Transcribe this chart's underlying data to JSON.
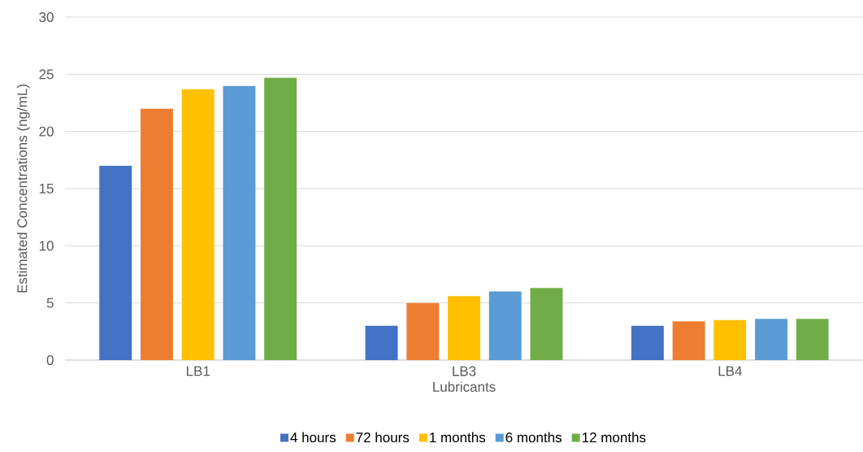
{
  "chart_data": {
    "type": "bar",
    "xlabel": "Lubricants",
    "ylabel": "Estimated Concentrations (ng/mL)",
    "categories": [
      "LB1",
      "LB3",
      "LB4"
    ],
    "series": [
      {
        "name": "4 hours",
        "color": "#4472c4",
        "values": [
          17.0,
          3.0,
          3.0
        ]
      },
      {
        "name": "72 hours",
        "color": "#ed7d31",
        "values": [
          22.0,
          5.0,
          3.4
        ]
      },
      {
        "name": "1 months",
        "color": "#ffc000",
        "values": [
          23.7,
          5.6,
          3.5
        ]
      },
      {
        "name": "6 months",
        "color": "#5b9bd5",
        "values": [
          24.0,
          6.0,
          3.6
        ]
      },
      {
        "name": "12 months",
        "color": "#70ad47",
        "values": [
          24.7,
          6.3,
          3.6
        ]
      }
    ],
    "ylim": [
      0,
      30
    ],
    "yticks": [
      0,
      5,
      10,
      15,
      20,
      25,
      30
    ],
    "grid": "y",
    "legend": "bottom"
  }
}
